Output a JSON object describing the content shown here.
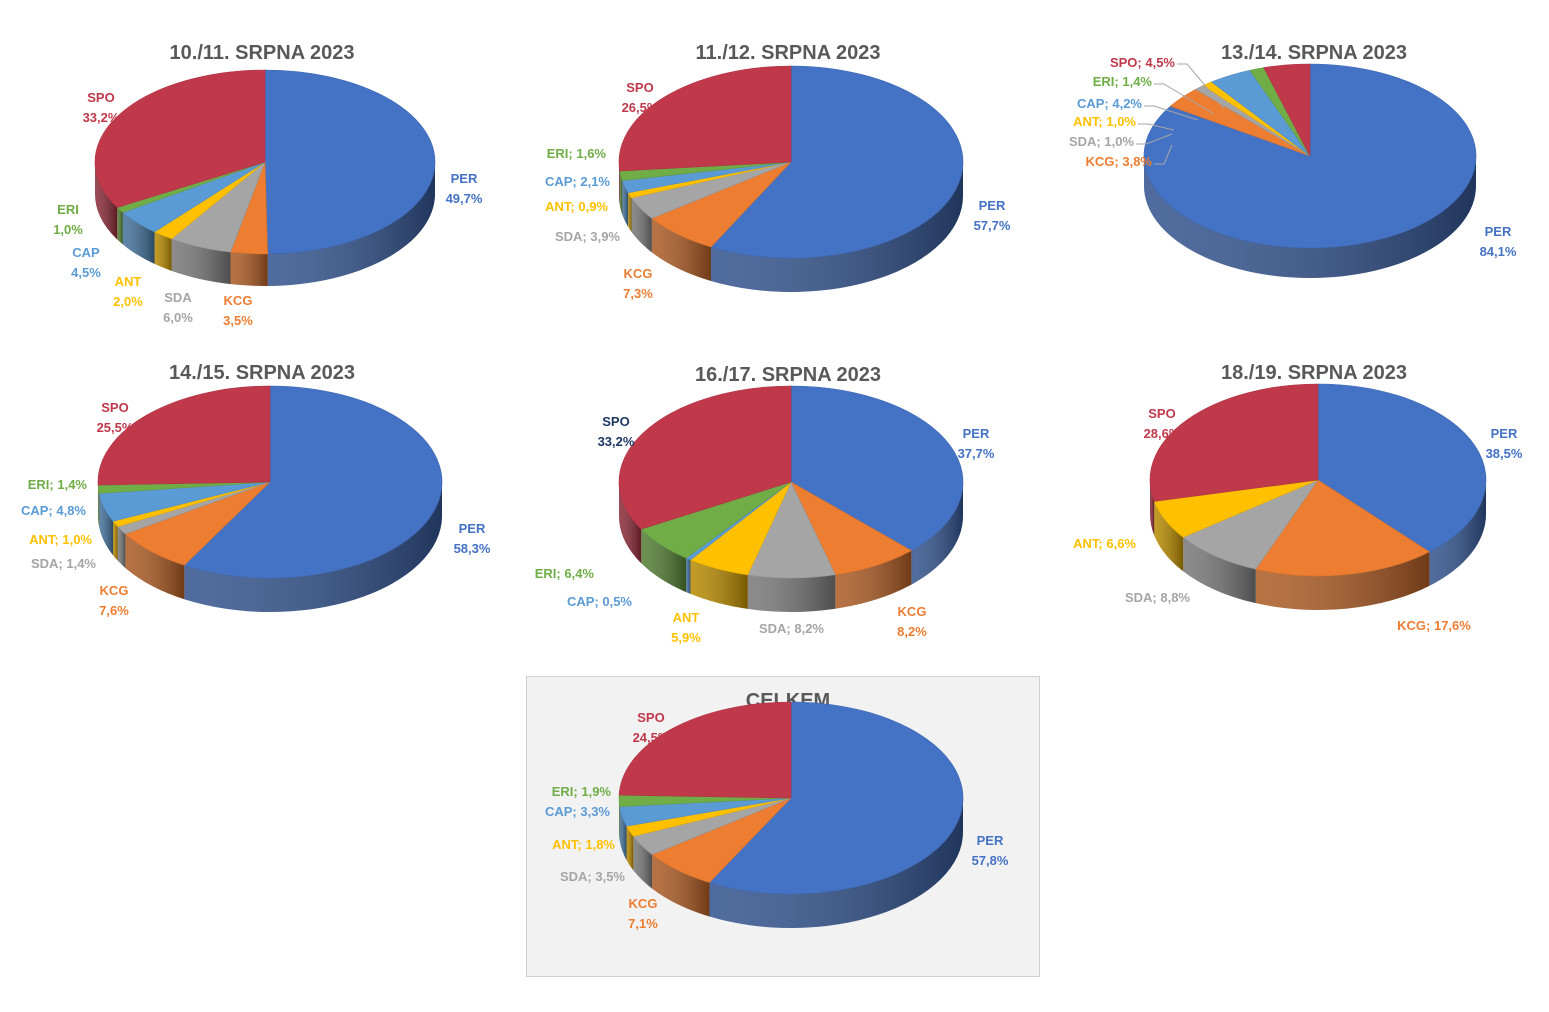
{
  "colors": {
    "PER": "#4472c4",
    "KCG": "#ed7d31",
    "SDA": "#a5a5a5",
    "ANT": "#ffc000",
    "CAP": "#5b9bd5",
    "ERI": "#70ad47",
    "SPO": "#c0394b"
  },
  "chart_data": [
    {
      "type": "pie",
      "title": "10./11. SRPNA 2023",
      "slices": [
        {
          "name": "PER",
          "value": 49.7,
          "label": "PER\n49,7%"
        },
        {
          "name": "KCG",
          "value": 3.5,
          "label": "KCG\n3,5%"
        },
        {
          "name": "SDA",
          "value": 6.0,
          "label": "SDA\n6,0%"
        },
        {
          "name": "ANT",
          "value": 2.0,
          "label": "ANT\n2,0%"
        },
        {
          "name": "CAP",
          "value": 4.5,
          "label": "CAP\n4,5%"
        },
        {
          "name": "ERI",
          "value": 1.0,
          "label": "ERI\n1,0%"
        },
        {
          "name": "SPO",
          "value": 33.2,
          "label": "SPO\n33,2%"
        }
      ]
    },
    {
      "type": "pie",
      "title": "11./12. SRPNA 2023",
      "slices": [
        {
          "name": "PER",
          "value": 57.7,
          "label": "PER\n57,7%"
        },
        {
          "name": "KCG",
          "value": 7.3,
          "label": "KCG\n7,3%"
        },
        {
          "name": "SDA",
          "value": 3.9,
          "label": "SDA; 3,9%"
        },
        {
          "name": "ANT",
          "value": 0.9,
          "label": "ANT; 0,9%"
        },
        {
          "name": "CAP",
          "value": 2.1,
          "label": "CAP; 2,1%"
        },
        {
          "name": "ERI",
          "value": 1.6,
          "label": "ERI; 1,6%"
        },
        {
          "name": "SPO",
          "value": 26.5,
          "label": "SPO\n26,5%"
        }
      ]
    },
    {
      "type": "pie",
      "title": "13./14. SRPNA 2023",
      "slices": [
        {
          "name": "PER",
          "value": 84.1,
          "label": "PER\n84,1%"
        },
        {
          "name": "KCG",
          "value": 3.8,
          "label": "KCG; 3,8%"
        },
        {
          "name": "SDA",
          "value": 1.0,
          "label": "SDA; 1,0%"
        },
        {
          "name": "ANT",
          "value": 1.0,
          "label": "ANT; 1,0%"
        },
        {
          "name": "CAP",
          "value": 4.2,
          "label": "CAP; 4,2%"
        },
        {
          "name": "ERI",
          "value": 1.4,
          "label": "ERI; 1,4%"
        },
        {
          "name": "SPO",
          "value": 4.5,
          "label": "SPO; 4,5%"
        }
      ]
    },
    {
      "type": "pie",
      "title": "14./15. SRPNA 2023",
      "slices": [
        {
          "name": "PER",
          "value": 58.3,
          "label": "PER\n58,3%"
        },
        {
          "name": "KCG",
          "value": 7.6,
          "label": "KCG\n7,6%"
        },
        {
          "name": "SDA",
          "value": 1.4,
          "label": "SDA; 1,4%"
        },
        {
          "name": "ANT",
          "value": 1.0,
          "label": "ANT; 1,0%"
        },
        {
          "name": "CAP",
          "value": 4.8,
          "label": "CAP; 4,8%"
        },
        {
          "name": "ERI",
          "value": 1.4,
          "label": "ERI; 1,4%"
        },
        {
          "name": "SPO",
          "value": 25.5,
          "label": "SPO\n25,5%"
        }
      ]
    },
    {
      "type": "pie",
      "title": "16./17. SRPNA 2023",
      "slices": [
        {
          "name": "PER",
          "value": 37.7,
          "label": "PER\n37,7%"
        },
        {
          "name": "KCG",
          "value": 8.2,
          "label": "KCG\n8,2%"
        },
        {
          "name": "SDA",
          "value": 8.2,
          "label": "SDA; 8,2%"
        },
        {
          "name": "ANT",
          "value": 5.9,
          "label": "ANT\n5,9%"
        },
        {
          "name": "CAP",
          "value": 0.5,
          "label": "CAP; 0,5%"
        },
        {
          "name": "ERI",
          "value": 6.4,
          "label": "ERI; 6,4%"
        },
        {
          "name": "SPO",
          "value": 33.2,
          "label": "SPO\n33,2%"
        }
      ]
    },
    {
      "type": "pie",
      "title": "18./19. SRPNA 2023",
      "slices": [
        {
          "name": "PER",
          "value": 38.5,
          "label": "PER\n38,5%"
        },
        {
          "name": "KCG",
          "value": 17.6,
          "label": "KCG; 17,6%"
        },
        {
          "name": "SDA",
          "value": 8.8,
          "label": "SDA; 8,8%"
        },
        {
          "name": "ANT",
          "value": 6.6,
          "label": "ANT; 6,6%"
        },
        {
          "name": "SPO",
          "value": 28.6,
          "label": "SPO\n28,6%"
        }
      ]
    },
    {
      "type": "pie",
      "title": "CELKEM",
      "slices": [
        {
          "name": "PER",
          "value": 57.8,
          "label": "PER\n57,8%"
        },
        {
          "name": "KCG",
          "value": 7.1,
          "label": "KCG\n7,1%"
        },
        {
          "name": "SDA",
          "value": 3.5,
          "label": "SDA; 3,5%"
        },
        {
          "name": "ANT",
          "value": 1.8,
          "label": "ANT; 1,8%"
        },
        {
          "name": "CAP",
          "value": 3.3,
          "label": "CAP; 3,3%"
        },
        {
          "name": "ERI",
          "value": 1.9,
          "label": "ERI; 1,9%"
        },
        {
          "name": "SPO",
          "value": 24.5,
          "label": "SPO\n24,5%"
        }
      ]
    }
  ]
}
